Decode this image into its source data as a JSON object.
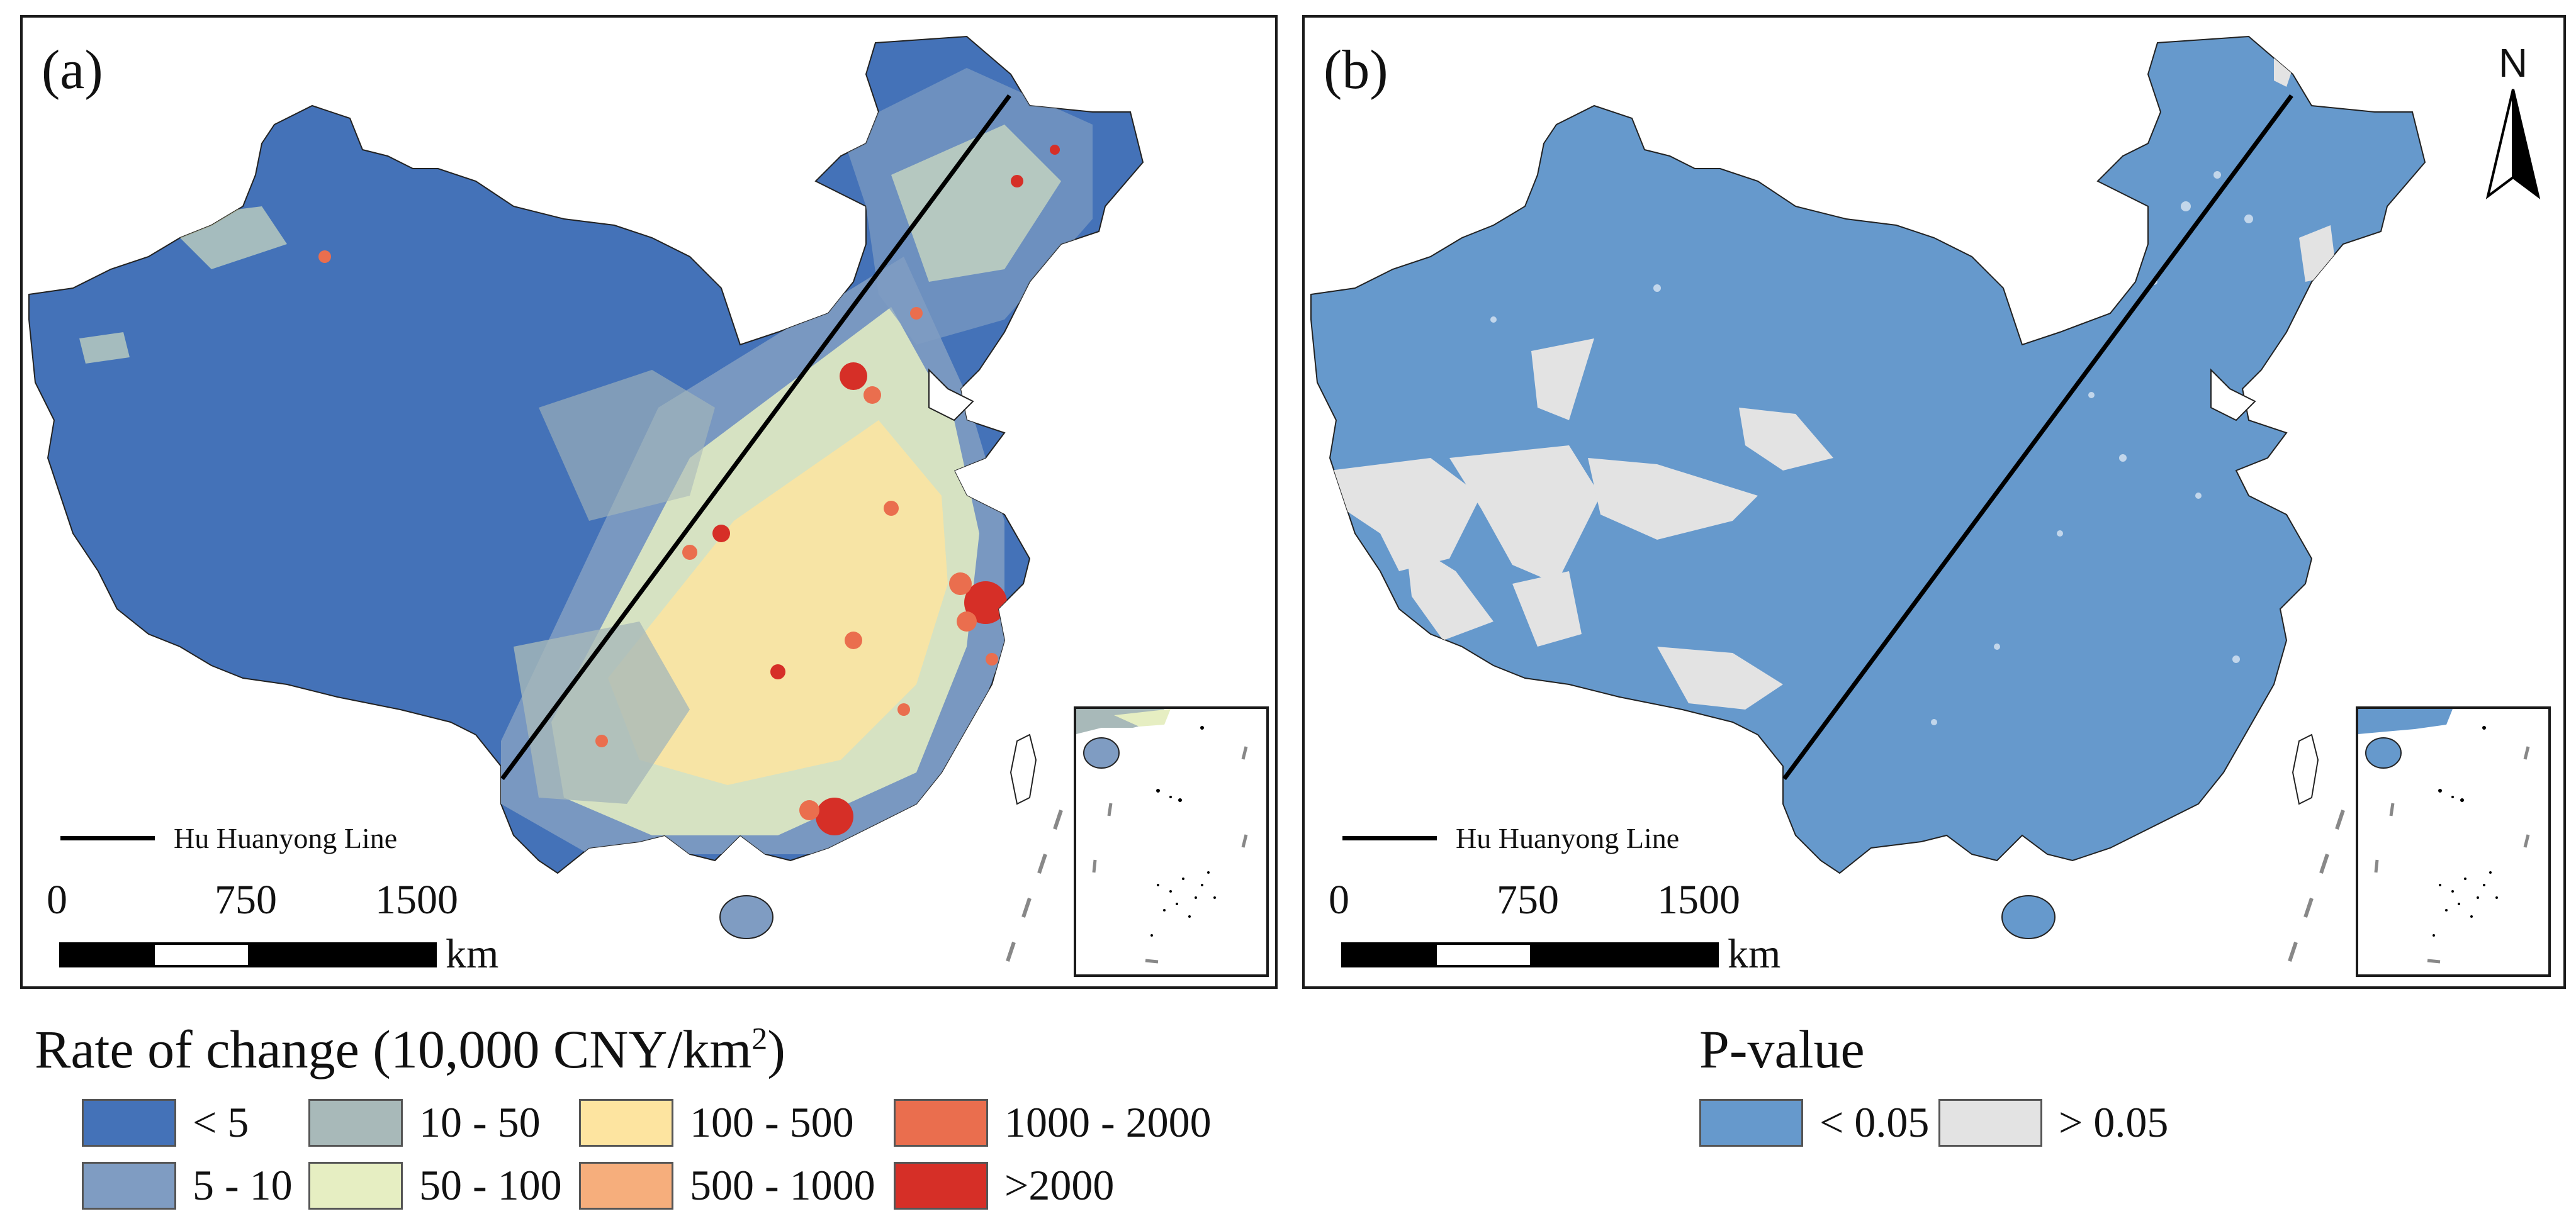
{
  "panel_a": {
    "label": "(a)",
    "line_legend": "Hu Huanyong Line",
    "scale": {
      "ticks": [
        "0",
        "750",
        "1500"
      ],
      "unit": "km"
    }
  },
  "panel_b": {
    "label": "(b)",
    "line_legend": "Hu Huanyong Line",
    "scale": {
      "ticks": [
        "0",
        "750",
        "1500"
      ],
      "unit": "km"
    },
    "north_label": "N"
  },
  "legend_a": {
    "title_main": "Rate of change (10,000 CNY/km",
    "title_sup": "2",
    "title_end": ")",
    "items": [
      {
        "label": "< 5",
        "color": "#4472b8"
      },
      {
        "label": "5 - 10",
        "color": "#7f9cc2"
      },
      {
        "label": "10 - 50",
        "color": "#a8b9b9"
      },
      {
        "label": "50 - 100",
        "color": "#e6eec2"
      },
      {
        "label": "100 - 500",
        "color": "#fde4a0"
      },
      {
        "label": "500 - 1000",
        "color": "#f6ae7c"
      },
      {
        "label": "1000 - 2000",
        "color": "#ea6e4e"
      },
      {
        "label": ">2000",
        "color": "#d62f27"
      }
    ]
  },
  "legend_b": {
    "title": "P-value",
    "items": [
      {
        "label": "< 0.05",
        "color": "#6699cc"
      },
      {
        "label": "> 0.05",
        "color": "#e3e3e3"
      }
    ]
  }
}
